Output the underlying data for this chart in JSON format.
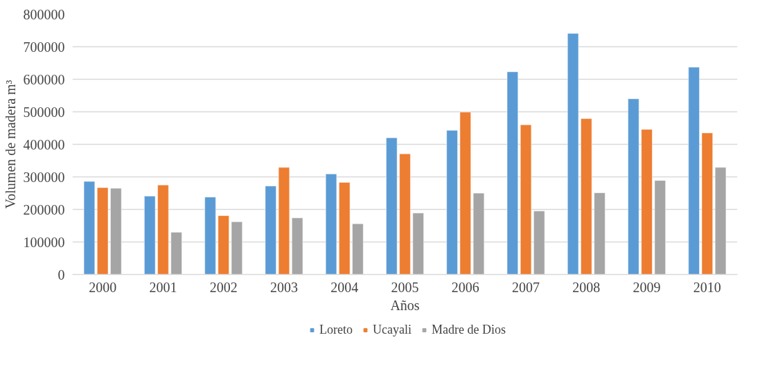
{
  "chart_data": {
    "type": "bar",
    "xlabel": "Años",
    "ylabel": "Volumen de madera m³",
    "categories": [
      "2000",
      "2001",
      "2002",
      "2003",
      "2004",
      "2005",
      "2006",
      "2007",
      "2008",
      "2009",
      "2010"
    ],
    "series": [
      {
        "name": "Loreto",
        "color": "#5b9bd5",
        "values": [
          286000,
          241000,
          238000,
          272000,
          309000,
          420000,
          443000,
          623000,
          741000,
          540000,
          637000
        ]
      },
      {
        "name": "Ucayali",
        "color": "#ed7d31",
        "values": [
          267000,
          275000,
          181000,
          329000,
          283000,
          371000,
          499000,
          460000,
          479000,
          446000,
          435000
        ]
      },
      {
        "name": "Madre de Dios",
        "color": "#a5a5a5",
        "values": [
          265000,
          130000,
          162000,
          174000,
          156000,
          189000,
          250000,
          195000,
          251000,
          289000,
          329000
        ]
      }
    ],
    "ylim": [
      0,
      800000
    ],
    "yticks": [
      0,
      100000,
      200000,
      300000,
      400000,
      500000,
      600000,
      700000,
      800000
    ],
    "grid": "y",
    "legend": "bottom"
  }
}
